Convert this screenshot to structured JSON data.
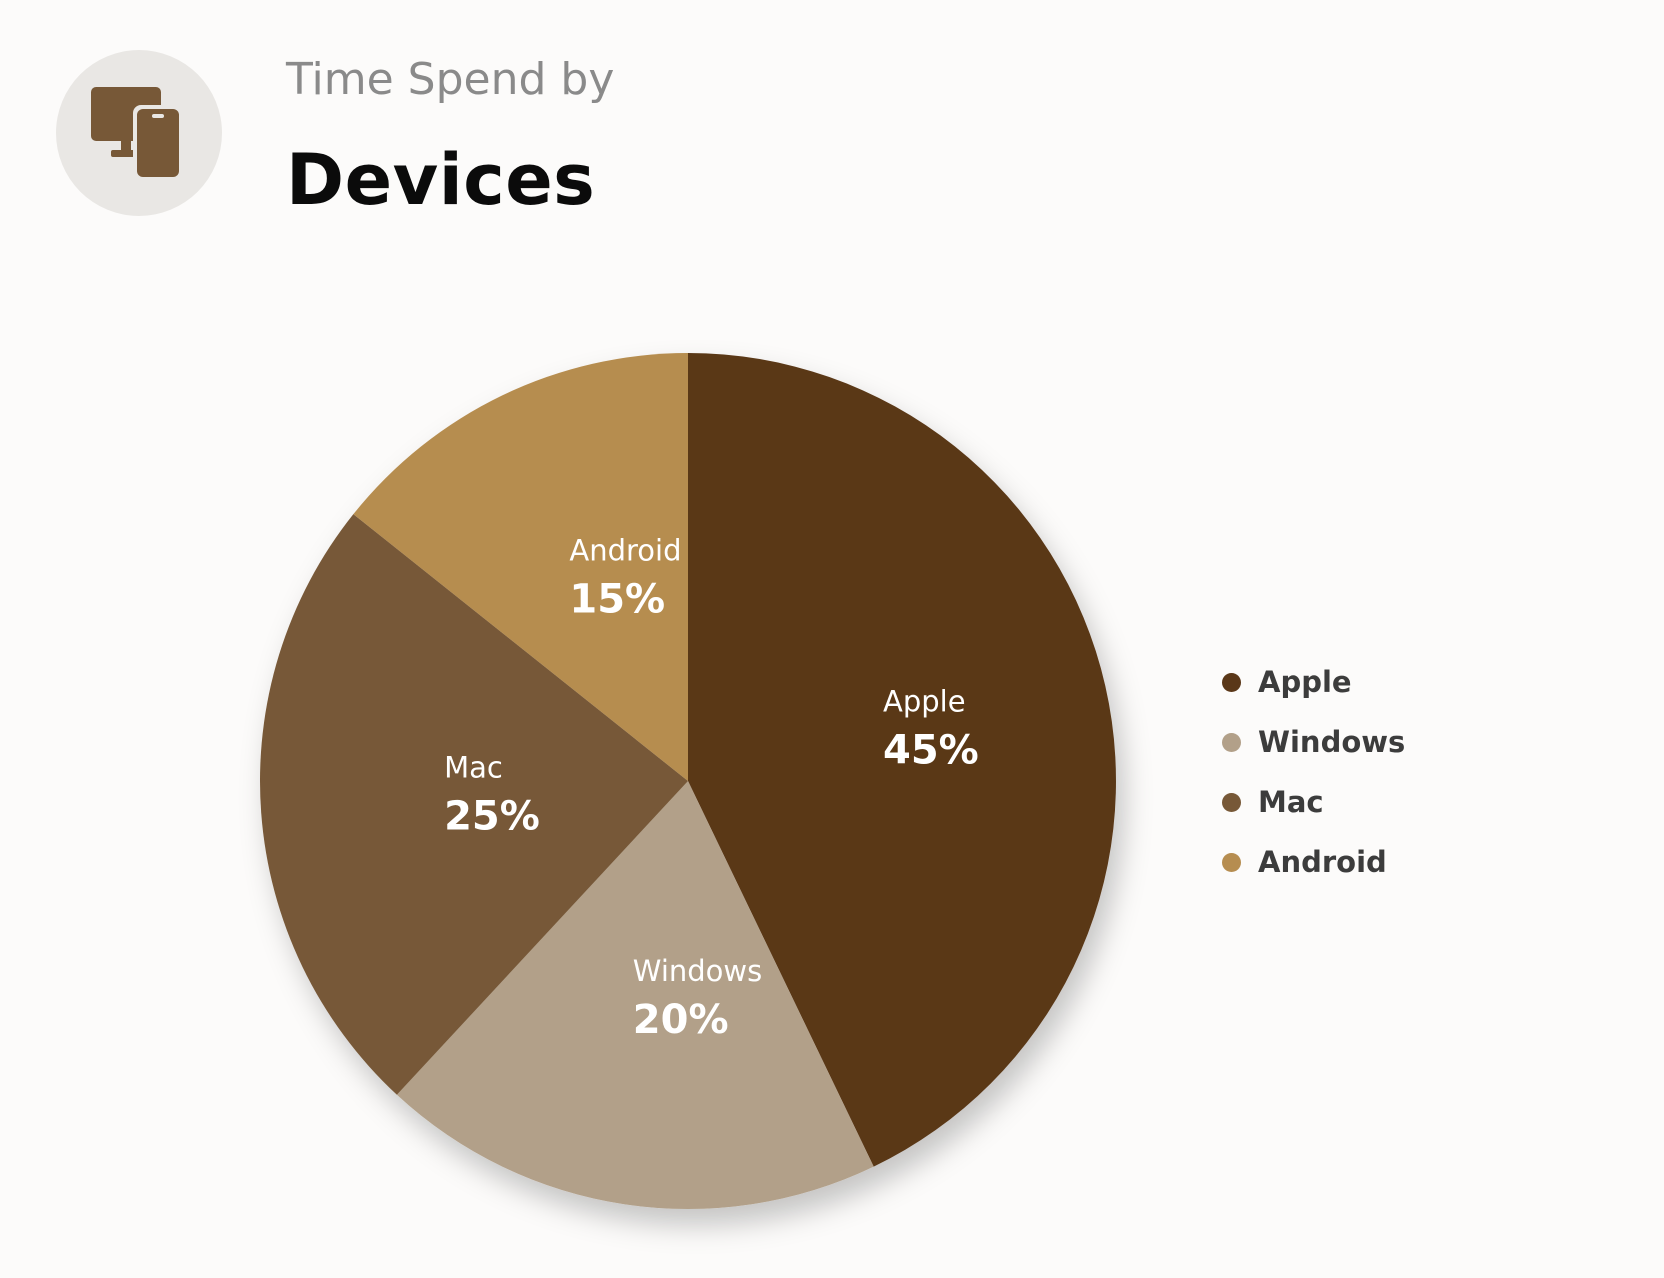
{
  "header": {
    "subtitle": "Time Spend by",
    "title": "Devices",
    "icon": "devices-icon"
  },
  "colors": {
    "Apple": "#5a3718",
    "Windows": "#b2a089",
    "Mac": "#775837",
    "Android": "#b68d50",
    "icon": "#775837",
    "icon_circle": "#e9e7e4"
  },
  "chart_data": {
    "type": "pie",
    "legend_position": "right",
    "slices": [
      {
        "label": "Apple",
        "value": 45,
        "display": "45%"
      },
      {
        "label": "Windows",
        "value": 20,
        "display": "20%"
      },
      {
        "label": "Mac",
        "value": 25,
        "display": "25%"
      },
      {
        "label": "Android",
        "value": 15,
        "display": "15%"
      }
    ]
  },
  "legend": {
    "items": [
      {
        "label": "Apple"
      },
      {
        "label": "Windows"
      },
      {
        "label": "Mac"
      },
      {
        "label": "Android"
      }
    ]
  }
}
